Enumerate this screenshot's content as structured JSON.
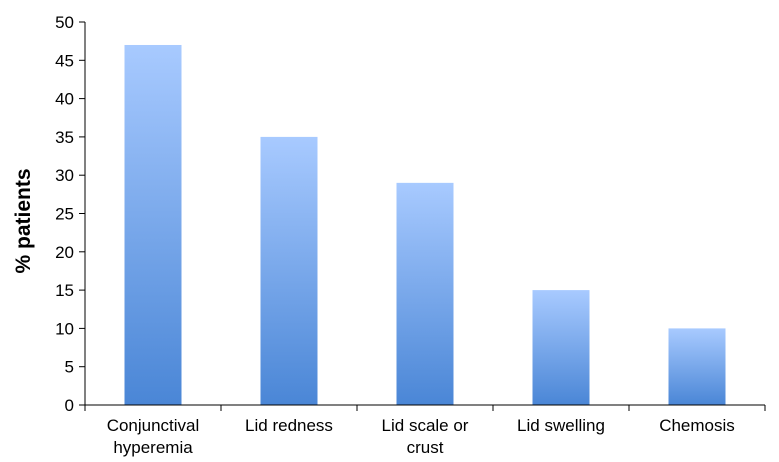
{
  "chart_data": {
    "type": "bar",
    "title": "",
    "xlabel": "",
    "ylabel": "% patients",
    "ylim": [
      0,
      50
    ],
    "yticks": [
      0,
      5,
      10,
      15,
      20,
      25,
      30,
      35,
      40,
      45,
      50
    ],
    "grid": false,
    "legend": "none",
    "categories": [
      [
        "Conjunctival",
        "hyperemia"
      ],
      [
        "Lid redness"
      ],
      [
        "Lid scale or",
        "crust"
      ],
      [
        "Lid swelling"
      ],
      [
        "Chemosis"
      ]
    ],
    "values": [
      47,
      35,
      29,
      15,
      10
    ],
    "colors": {
      "bar_top": "#a8caff",
      "bar_bottom": "#4a86d6",
      "axis": "#000000"
    }
  }
}
